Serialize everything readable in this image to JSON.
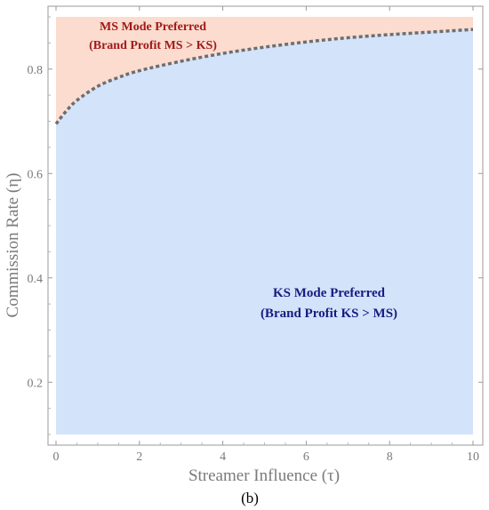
{
  "chart_data": {
    "type": "area",
    "xlabel": "Streamer Influence (τ)",
    "ylabel": "Commission Rate (η)",
    "caption": "(b)",
    "xlim": [
      0,
      10
    ],
    "ylim": [
      0.1,
      0.9
    ],
    "x_ticks": [
      "0",
      "2",
      "4",
      "6",
      "8",
      "10"
    ],
    "y_ticks": [
      "0.2",
      "0.4",
      "0.6",
      "0.8"
    ],
    "grid": false,
    "boundary": {
      "style": "dashed",
      "x": [
        0,
        0.25,
        0.5,
        1,
        1.5,
        2,
        3,
        4,
        5,
        6,
        7,
        8,
        9,
        10
      ],
      "y": [
        0.695,
        0.72,
        0.74,
        0.767,
        0.784,
        0.797,
        0.815,
        0.83,
        0.842,
        0.852,
        0.86,
        0.866,
        0.871,
        0.876
      ]
    },
    "regions": [
      {
        "name": "MS Mode Preferred",
        "line1": "MS Mode Preferred",
        "line2": "(Brand Profit MS > KS)",
        "side": "above",
        "color": "#fbdccf"
      },
      {
        "name": "KS Mode Preferred",
        "line1": "KS Mode Preferred",
        "line2": "(Brand Profit KS > MS)",
        "side": "below",
        "color": "#d3e3fa"
      }
    ]
  }
}
